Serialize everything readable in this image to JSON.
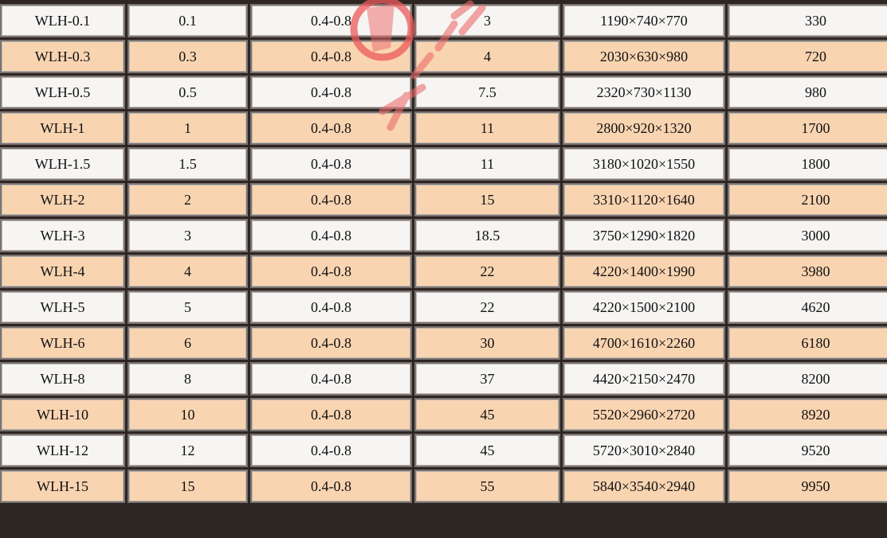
{
  "table": {
    "rows": [
      [
        "WLH-0.1",
        "0.1",
        "0.4-0.8",
        "3",
        "1190×740×770",
        "330"
      ],
      [
        "WLH-0.3",
        "0.3",
        "0.4-0.8",
        "4",
        "2030×630×980",
        "720"
      ],
      [
        "WLH-0.5",
        "0.5",
        "0.4-0.8",
        "7.5",
        "2320×730×1130",
        "980"
      ],
      [
        "WLH-1",
        "1",
        "0.4-0.8",
        "11",
        "2800×920×1320",
        "1700"
      ],
      [
        "WLH-1.5",
        "1.5",
        "0.4-0.8",
        "11",
        "3180×1020×1550",
        "1800"
      ],
      [
        "WLH-2",
        "2",
        "0.4-0.8",
        "15",
        "3310×1120×1640",
        "2100"
      ],
      [
        "WLH-3",
        "3",
        "0.4-0.8",
        "18.5",
        "3750×1290×1820",
        "3000"
      ],
      [
        "WLH-4",
        "4",
        "0.4-0.8",
        "22",
        "4220×1400×1990",
        "3980"
      ],
      [
        "WLH-5",
        "5",
        "0.4-0.8",
        "22",
        "4220×1500×2100",
        "4620"
      ],
      [
        "WLH-6",
        "6",
        "0.4-0.8",
        "30",
        "4700×1610×2260",
        "6180"
      ],
      [
        "WLH-8",
        "8",
        "0.4-0.8",
        "37",
        "4420×2150×2470",
        "8200"
      ],
      [
        "WLH-10",
        "10",
        "0.4-0.8",
        "45",
        "5520×2960×2720",
        "8920"
      ],
      [
        "WLH-12",
        "12",
        "0.4-0.8",
        "45",
        "5720×3010×2840",
        "9520"
      ],
      [
        "WLH-15",
        "15",
        "0.4-0.8",
        "55",
        "5840×3540×2940",
        "9950"
      ]
    ]
  },
  "colors": {
    "row_light": "#f6f5f3",
    "row_peach": "#f9d4b1",
    "grid": "#2e2622",
    "watermark": "#e84a4a"
  }
}
